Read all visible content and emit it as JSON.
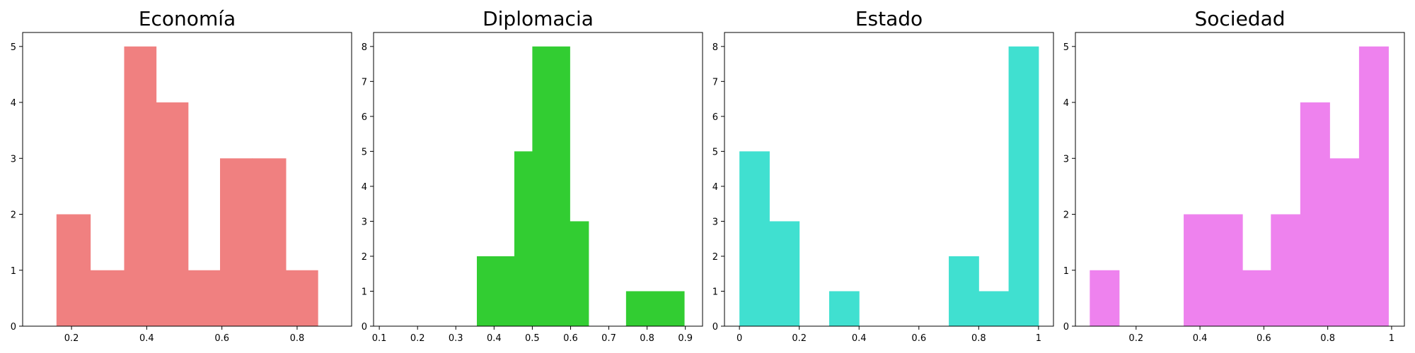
{
  "chart_data": [
    {
      "type": "bar",
      "title": "Economía",
      "color": "#f08080",
      "xlim": [
        0.07,
        0.945
      ],
      "ylim": [
        0,
        5.25
      ],
      "xticks": [
        0.2,
        0.4,
        0.6,
        0.8
      ],
      "yticks": [
        0,
        1,
        2,
        3,
        4,
        5
      ],
      "bins": [
        {
          "x0": 0.16,
          "x1": 0.25,
          "count": 2
        },
        {
          "x0": 0.25,
          "x1": 0.34,
          "count": 1
        },
        {
          "x0": 0.34,
          "x1": 0.425,
          "count": 5
        },
        {
          "x0": 0.425,
          "x1": 0.51,
          "count": 4
        },
        {
          "x0": 0.51,
          "x1": 0.595,
          "count": 1
        },
        {
          "x0": 0.595,
          "x1": 0.68,
          "count": 3
        },
        {
          "x0": 0.68,
          "x1": 0.77,
          "count": 3
        },
        {
          "x0": 0.77,
          "x1": 0.855,
          "count": 1
        }
      ]
    },
    {
      "type": "bar",
      "title": "Diplomacia",
      "color": "#32cd32",
      "xlim": [
        0.085,
        0.945
      ],
      "ylim": [
        0,
        8.4
      ],
      "xticks": [
        0.1,
        0.2,
        0.3,
        0.4,
        0.5,
        0.6,
        0.7,
        0.8,
        0.9
      ],
      "yticks": [
        0,
        1,
        2,
        3,
        4,
        5,
        6,
        7,
        8
      ],
      "bins": [
        {
          "x0": 0.355,
          "x1": 0.453,
          "count": 2
        },
        {
          "x0": 0.453,
          "x1": 0.5,
          "count": 5
        },
        {
          "x0": 0.5,
          "x1": 0.598,
          "count": 8
        },
        {
          "x0": 0.598,
          "x1": 0.647,
          "count": 3
        },
        {
          "x0": 0.745,
          "x1": 0.897,
          "count": 1
        }
      ]
    },
    {
      "type": "bar",
      "title": "Estado",
      "color": "#40e0d0",
      "xlim": [
        -0.05,
        1.05
      ],
      "ylim": [
        0,
        8.4
      ],
      "xticks": [
        0.0,
        0.2,
        0.4,
        0.6,
        0.8,
        1.0
      ],
      "yticks": [
        0,
        1,
        2,
        3,
        4,
        5,
        6,
        7,
        8
      ],
      "bins": [
        {
          "x0": 0.0,
          "x1": 0.1,
          "count": 5
        },
        {
          "x0": 0.1,
          "x1": 0.2,
          "count": 3
        },
        {
          "x0": 0.3,
          "x1": 0.4,
          "count": 1
        },
        {
          "x0": 0.7,
          "x1": 0.8,
          "count": 2
        },
        {
          "x0": 0.8,
          "x1": 0.9,
          "count": 1
        },
        {
          "x0": 0.9,
          "x1": 1.0,
          "count": 8
        }
      ]
    },
    {
      "type": "bar",
      "title": "Sociedad",
      "color": "#ee82ee",
      "xlim": [
        0.01,
        1.04
      ],
      "ylim": [
        0,
        5.25
      ],
      "xticks": [
        0.2,
        0.4,
        0.6,
        0.8,
        1.0
      ],
      "yticks": [
        0,
        1,
        2,
        3,
        4,
        5
      ],
      "bins": [
        {
          "x0": 0.055,
          "x1": 0.147,
          "count": 1
        },
        {
          "x0": 0.349,
          "x1": 0.441,
          "count": 2
        },
        {
          "x0": 0.441,
          "x1": 0.533,
          "count": 2
        },
        {
          "x0": 0.533,
          "x1": 0.622,
          "count": 1
        },
        {
          "x0": 0.622,
          "x1": 0.714,
          "count": 2
        },
        {
          "x0": 0.714,
          "x1": 0.806,
          "count": 4
        },
        {
          "x0": 0.806,
          "x1": 0.898,
          "count": 3
        },
        {
          "x0": 0.898,
          "x1": 0.99,
          "count": 5
        }
      ]
    }
  ]
}
